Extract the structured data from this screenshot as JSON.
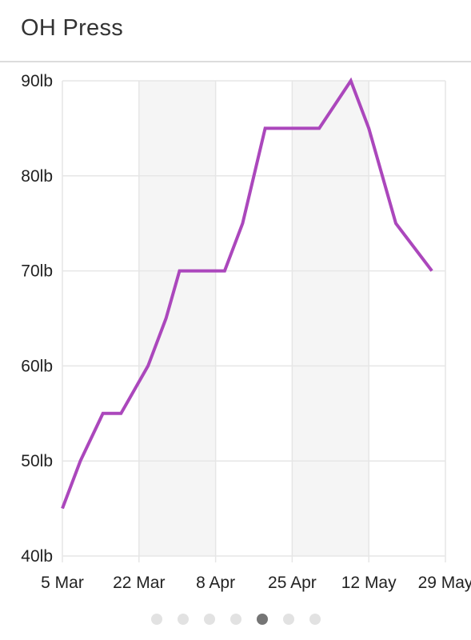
{
  "header": {
    "title": "OH Press"
  },
  "chart_data": {
    "type": "line",
    "title": "OH Press",
    "xlabel": "",
    "ylabel": "",
    "y_unit": "lb",
    "ylim": [
      40,
      90
    ],
    "y_ticks": [
      {
        "value": 90,
        "label": "90lb"
      },
      {
        "value": 80,
        "label": "80lb"
      },
      {
        "value": 70,
        "label": "70lb"
      },
      {
        "value": 60,
        "label": "60lb"
      },
      {
        "value": 50,
        "label": "50lb"
      },
      {
        "value": 40,
        "label": "40lb"
      }
    ],
    "xlim": [
      "2020-03-05",
      "2020-05-29"
    ],
    "x_ticks": [
      {
        "date": "2020-03-05",
        "label": "5 Mar"
      },
      {
        "date": "2020-03-22",
        "label": "22 Mar"
      },
      {
        "date": "2020-04-08",
        "label": "8 Apr"
      },
      {
        "date": "2020-04-25",
        "label": "25 Apr"
      },
      {
        "date": "2020-05-12",
        "label": "12 May"
      },
      {
        "date": "2020-05-29",
        "label": "29 May"
      }
    ],
    "grid": true,
    "shaded_bands": [
      {
        "from": "2020-03-22",
        "to": "2020-04-08"
      },
      {
        "from": "2020-04-25",
        "to": "2020-05-12"
      }
    ],
    "series": [
      {
        "color": "#ab47bc",
        "points": [
          {
            "x": "2020-03-05",
            "y": 45
          },
          {
            "x": "2020-03-09",
            "y": 50
          },
          {
            "x": "2020-03-14",
            "y": 55
          },
          {
            "x": "2020-03-18",
            "y": 55
          },
          {
            "x": "2020-03-24",
            "y": 60
          },
          {
            "x": "2020-03-28",
            "y": 65
          },
          {
            "x": "2020-03-31",
            "y": 70
          },
          {
            "x": "2020-04-10",
            "y": 70
          },
          {
            "x": "2020-04-14",
            "y": 75
          },
          {
            "x": "2020-04-19",
            "y": 85
          },
          {
            "x": "2020-05-01",
            "y": 85
          },
          {
            "x": "2020-05-08",
            "y": 90
          },
          {
            "x": "2020-05-12",
            "y": 85
          },
          {
            "x": "2020-05-18",
            "y": 75
          },
          {
            "x": "2020-05-26",
            "y": 70
          }
        ]
      }
    ]
  },
  "pager": {
    "count": 7,
    "active_index": 4
  }
}
